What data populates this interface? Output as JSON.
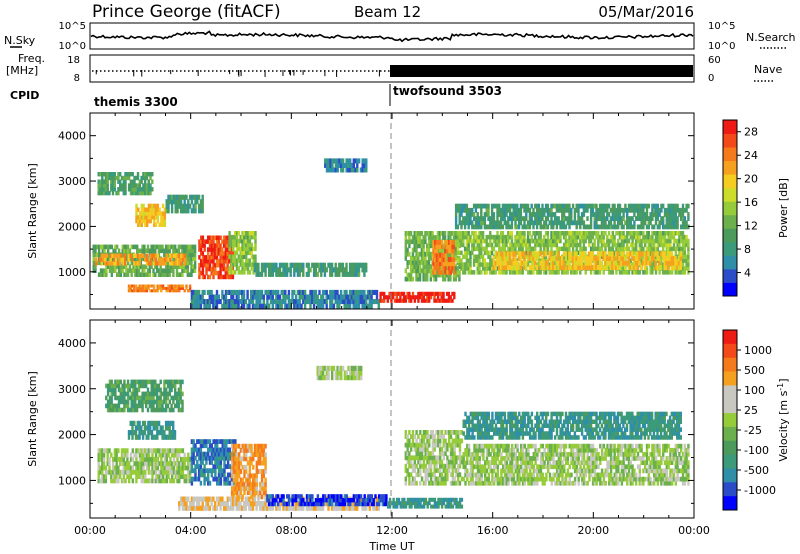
{
  "header": {
    "station": "Prince George (fitACF)",
    "beam": "Beam 12",
    "date": "05/Mar/2016"
  },
  "noise_panel": {
    "left_label": "N.Sky",
    "right_label": "N.Search",
    "left_ticks": [
      "10^5",
      "10^0"
    ],
    "right_ticks": [
      "10^5",
      "10^0"
    ]
  },
  "freq_panel": {
    "left_label_1": "Freq.",
    "left_label_2": "[MHz]",
    "left_ticks": [
      "18",
      "8"
    ],
    "right_label": "Nave",
    "right_ticks": [
      "60",
      "0"
    ]
  },
  "cpid_panel": {
    "label": "CPID",
    "modes": [
      {
        "name": "themis 3300",
        "start_hour": 0,
        "end_hour": 12
      },
      {
        "name": "twofsound 3503",
        "start_hour": 12,
        "end_hour": 24
      }
    ]
  },
  "chart_data": [
    {
      "type": "heatmap",
      "ylabel": "Slant Range [km]",
      "ylim": [
        180,
        4500
      ],
      "y_ticks": [
        "4000",
        "3000",
        "2000",
        "1000"
      ],
      "y_tick_values": [
        4000,
        3000,
        2000,
        1000
      ],
      "xlim": [
        0,
        24
      ],
      "colorbar": {
        "label": "Power [dB]",
        "tick_labels": [
          "28",
          "24",
          "20",
          "16",
          "12",
          "8",
          "4"
        ],
        "tick_values": [
          28,
          24,
          20,
          16,
          12,
          8,
          4
        ],
        "range": [
          0,
          30
        ]
      },
      "regions": [
        {
          "t0": 0.1,
          "t1": 4.2,
          "r0": 900,
          "r1": 1600,
          "v": 12
        },
        {
          "t0": 0.2,
          "t1": 3.8,
          "r0": 1150,
          "r1": 1400,
          "v": 22
        },
        {
          "t0": 0.3,
          "t1": 2.5,
          "r0": 2700,
          "r1": 3200,
          "v": 10
        },
        {
          "t0": 1.8,
          "t1": 3.0,
          "r0": 2000,
          "r1": 2500,
          "v": 20
        },
        {
          "t0": 3.0,
          "t1": 4.5,
          "r0": 2300,
          "r1": 2700,
          "v": 9
        },
        {
          "t0": 4.3,
          "t1": 5.7,
          "r0": 850,
          "r1": 1800,
          "v": 27
        },
        {
          "t0": 5.5,
          "t1": 6.6,
          "r0": 950,
          "r1": 1900,
          "v": 14
        },
        {
          "t0": 1.5,
          "t1": 4.0,
          "r0": 560,
          "r1": 720,
          "v": 24
        },
        {
          "t0": 4.0,
          "t1": 11.5,
          "r0": 200,
          "r1": 600,
          "v": 6
        },
        {
          "t0": 6.5,
          "t1": 11.0,
          "r0": 900,
          "r1": 1200,
          "v": 9
        },
        {
          "t0": 11.5,
          "t1": 14.5,
          "r0": 330,
          "r1": 560,
          "v": 29
        },
        {
          "t0": 12.5,
          "t1": 14.7,
          "r0": 800,
          "r1": 1900,
          "v": 13
        },
        {
          "t0": 13.6,
          "t1": 14.5,
          "r0": 950,
          "r1": 1700,
          "v": 24
        },
        {
          "t0": 14.5,
          "t1": 23.8,
          "r0": 950,
          "r1": 1900,
          "v": 14
        },
        {
          "t0": 16.0,
          "t1": 23.5,
          "r0": 1050,
          "r1": 1450,
          "v": 20
        },
        {
          "t0": 14.5,
          "t1": 23.8,
          "r0": 1950,
          "r1": 2500,
          "v": 9
        },
        {
          "t0": 9.3,
          "t1": 11.0,
          "r0": 3200,
          "r1": 3500,
          "v": 6
        }
      ]
    },
    {
      "type": "heatmap",
      "ylabel": "Slant Range [km]",
      "ylim": [
        180,
        4500
      ],
      "y_ticks": [
        "4000",
        "3000",
        "2000",
        "1000"
      ],
      "y_tick_values": [
        4000,
        3000,
        2000,
        1000
      ],
      "xlim": [
        0,
        24
      ],
      "xlabel": "Time UT",
      "x_ticks": [
        "00:00",
        "04:00",
        "08:00",
        "12:00",
        "16:00",
        "20:00",
        "00:00"
      ],
      "x_tick_values": [
        0,
        4,
        8,
        12,
        16,
        20,
        24
      ],
      "colorbar": {
        "label": "Velocity [m s^-1]",
        "tick_labels": [
          "1000",
          "500",
          "100",
          "25",
          "-25",
          "-100",
          "-500",
          "-1000"
        ]
      },
      "regions": [
        {
          "t0": 0.3,
          "t1": 4.0,
          "r0": 950,
          "r1": 1700,
          "v": 0
        },
        {
          "t0": 0.6,
          "t1": 3.7,
          "r0": 2500,
          "r1": 3200,
          "v": -2
        },
        {
          "t0": 1.5,
          "t1": 3.4,
          "r0": 1900,
          "r1": 2300,
          "v": -3
        },
        {
          "t0": 4.0,
          "t1": 5.8,
          "r0": 900,
          "r1": 1900,
          "v": -4
        },
        {
          "t0": 5.6,
          "t1": 7.0,
          "r0": 600,
          "r1": 1800,
          "v": 3
        },
        {
          "t0": 3.5,
          "t1": 11.5,
          "r0": 350,
          "r1": 650,
          "v": 2
        },
        {
          "t0": 7.0,
          "t1": 11.8,
          "r0": 450,
          "r1": 700,
          "v": -5
        },
        {
          "t0": 11.8,
          "t1": 14.8,
          "r0": 400,
          "r1": 620,
          "v": -3
        },
        {
          "t0": 12.5,
          "t1": 14.8,
          "r0": 900,
          "r1": 2100,
          "v": 0
        },
        {
          "t0": 14.8,
          "t1": 23.8,
          "r0": 900,
          "r1": 1800,
          "v": 0
        },
        {
          "t0": 14.8,
          "t1": 23.5,
          "r0": 1900,
          "r1": 2500,
          "v": -3
        },
        {
          "t0": 9.0,
          "t1": 10.8,
          "r0": 3200,
          "r1": 3500,
          "v": 0
        }
      ]
    }
  ],
  "colors": {
    "power_scale": [
      "#0000ff",
      "#2a4cc8",
      "#2f8fa8",
      "#3a9a7a",
      "#4c9a5c",
      "#6bb04c",
      "#96cc3a",
      "#cddc2a",
      "#f4cc22",
      "#f6a020",
      "#f57a1c",
      "#f24a18",
      "#ee1a14"
    ],
    "velocity_scale": [
      "#0000ff",
      "#2a4cc8",
      "#2f8fa8",
      "#3a9a7a",
      "#4c9a5c",
      "#6bb04c",
      "#96cc3a",
      "#c8c8c0",
      "#c8c8c0",
      "#f6a020",
      "#f57a1c",
      "#f24a18",
      "#ee1a14"
    ]
  }
}
